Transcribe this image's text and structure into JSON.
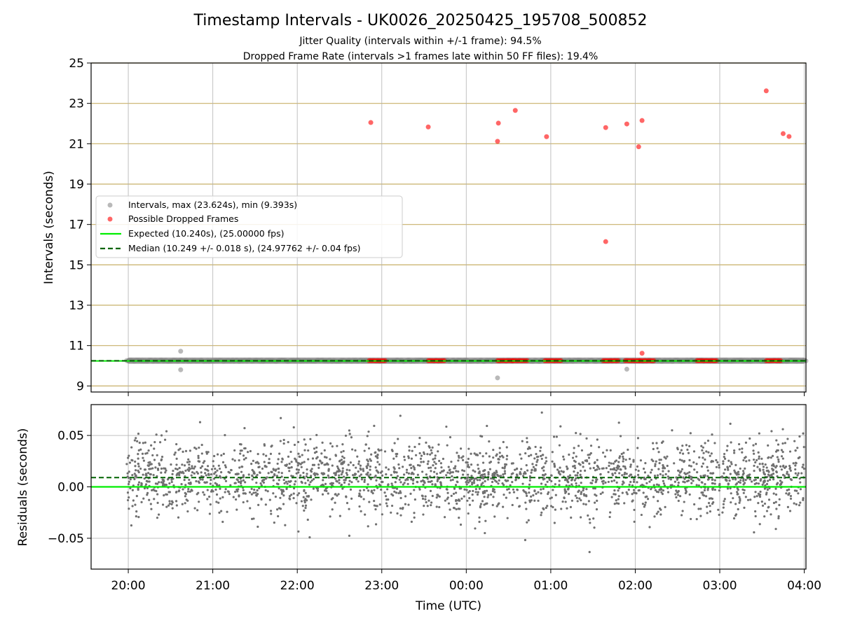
{
  "colors": {
    "intervals": "#808080",
    "dropped": "#ff0000",
    "expected": "#00ee00",
    "median": "#006400",
    "hgrid_top": "#c8b069",
    "grid": "#b0b0b0",
    "residual_points": "#707070"
  },
  "chart_data": [
    {
      "type": "scatter",
      "title": "Timestamp Intervals - UK0026_20250425_195708_500852",
      "subtitle": [
        "Jitter Quality (intervals within +/-1 frame): 94.5%",
        "Dropped Frame Rate (intervals >1 frames late within 50 FF files): 19.4%"
      ],
      "xlabel": "",
      "ylabel": "Intervals (seconds)",
      "x_unit": "hours since 20:00 UTC",
      "xlim": [
        -0.44,
        8.02
      ],
      "ylim": [
        8.7,
        25
      ],
      "yticks": [
        9,
        11,
        13,
        15,
        17,
        19,
        21,
        23,
        25
      ],
      "grid": "horizontal and vertical",
      "legend_position": "center-left",
      "legend": [
        "Intervals, max (23.624s), min (9.393s)",
        "Possible Dropped Frames",
        "Expected (10.240s), (25.00000 fps)",
        "Median (10.249 +/- 0.018 s), (24.97762 +/- 0.04 fps)"
      ],
      "baseline_band": {
        "y": 10.25,
        "x_from": -0.02,
        "x_to": 8.02
      },
      "interval_outliers": [
        {
          "x": 0.62,
          "y": 10.72
        },
        {
          "x": 0.62,
          "y": 9.8
        },
        {
          "x": 4.37,
          "y": 9.4
        },
        {
          "x": 5.9,
          "y": 9.83
        }
      ],
      "dropped_frames": [
        {
          "x": 2.87,
          "y": 22.05
        },
        {
          "x": 3.55,
          "y": 21.83
        },
        {
          "x": 4.37,
          "y": 21.12
        },
        {
          "x": 4.38,
          "y": 22.02
        },
        {
          "x": 4.58,
          "y": 22.65
        },
        {
          "x": 4.95,
          "y": 21.35
        },
        {
          "x": 5.65,
          "y": 21.8
        },
        {
          "x": 5.65,
          "y": 16.15
        },
        {
          "x": 5.9,
          "y": 21.98
        },
        {
          "x": 6.04,
          "y": 20.85
        },
        {
          "x": 6.08,
          "y": 22.15
        },
        {
          "x": 6.08,
          "y": 10.62
        },
        {
          "x": 7.75,
          "y": 21.5
        },
        {
          "x": 7.82,
          "y": 21.36
        },
        {
          "x": 7.55,
          "y": 23.62
        }
      ],
      "dropped_clusters": [
        [
          2.85,
          3.04
        ],
        [
          3.55,
          3.74
        ],
        [
          4.37,
          4.55
        ],
        [
          4.55,
          4.72
        ],
        [
          4.93,
          5.12
        ],
        [
          5.62,
          5.8
        ],
        [
          5.88,
          6.05
        ],
        [
          6.05,
          6.22
        ],
        [
          6.73,
          6.96
        ],
        [
          7.55,
          7.72
        ]
      ],
      "expected_y": 10.24,
      "median_y": 10.249
    },
    {
      "type": "scatter",
      "xlabel": "Time (UTC)",
      "ylabel": "Residuals (seconds)",
      "x_unit": "hours since 20:00 UTC",
      "xlim": [
        -0.44,
        8.02
      ],
      "ylim": [
        -0.08,
        0.08
      ],
      "yticks": [
        -0.05,
        0.0,
        0.05
      ],
      "ytick_labels": [
        "−0.05",
        "0.00",
        "0.05"
      ],
      "xticks": [
        0,
        1,
        2,
        3,
        4,
        5,
        6,
        7,
        8
      ],
      "xtick_labels": [
        "20:00",
        "21:00",
        "22:00",
        "23:00",
        "00:00",
        "01:00",
        "02:00",
        "03:00",
        "04:00"
      ],
      "grid": "horizontal and vertical",
      "residual_center": 0.009,
      "residual_spread": 0.018,
      "residual_range": [
        -0.07,
        0.075
      ],
      "expected_residual": 0.0,
      "median_residual": 0.009
    }
  ]
}
